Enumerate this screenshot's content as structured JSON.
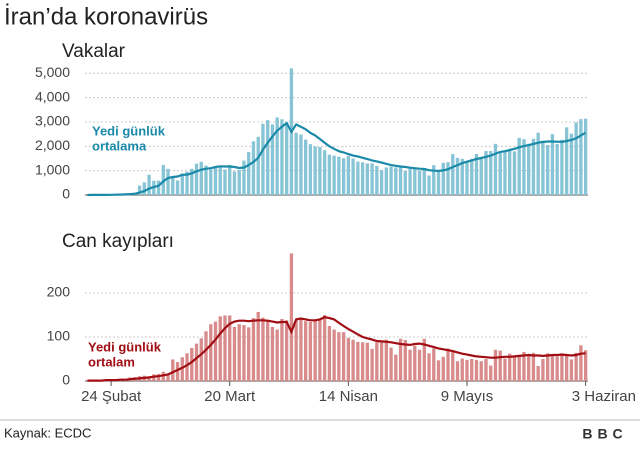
{
  "title": "İran’da koronavirüs",
  "source": "Kaynak: ECDC",
  "logo": "BBC",
  "chart_data": [
    {
      "type": "bar",
      "title": "Vakalar",
      "annotation": [
        "Yedi günlük",
        "ortalama"
      ],
      "categories": [
        null,
        null,
        null,
        null,
        null,
        "24 Şubat",
        null,
        null,
        null,
        null,
        null,
        null,
        null,
        null,
        null,
        null,
        null,
        null,
        null,
        null,
        null,
        null,
        null,
        null,
        null,
        null,
        null,
        null,
        null,
        null,
        "20 Mart",
        null,
        null,
        null,
        null,
        null,
        null,
        null,
        null,
        null,
        null,
        null,
        null,
        null,
        null,
        null,
        null,
        null,
        null,
        null,
        null,
        null,
        null,
        null,
        null,
        "14 Nisan",
        null,
        null,
        null,
        null,
        null,
        null,
        null,
        null,
        null,
        null,
        null,
        null,
        null,
        null,
        null,
        null,
        null,
        null,
        null,
        null,
        null,
        null,
        null,
        null,
        "9 Mayıs",
        null,
        null,
        null,
        null,
        null,
        null,
        null,
        null,
        null,
        null,
        null,
        null,
        null,
        null,
        null,
        null,
        null,
        null,
        null,
        null,
        null,
        null,
        null,
        null,
        "3 Haziran"
      ],
      "series": [
        {
          "type": "bar",
          "color": "#86c4d6",
          "values": [
            2,
            3,
            3,
            5,
            10,
            15,
            18,
            25,
            45,
            60,
            100,
            385,
            520,
            835,
            586,
            591,
            1234,
            1076,
            743,
            595,
            881,
            958,
            1075,
            1289,
            1365,
            1209,
            1053,
            1178,
            1192,
            1046,
            1237,
            966,
            1028,
            1411,
            1762,
            2206,
            2389,
            2926,
            3076,
            2901,
            3186,
            3110,
            2987,
            5200,
            2560,
            2483,
            2274,
            2089,
            1997,
            1972,
            1837,
            1657,
            1617,
            1574,
            1512,
            1606,
            1499,
            1374,
            1343,
            1294,
            1297,
            1194,
            1030,
            1133,
            1168,
            1134,
            1153,
            991,
            1112,
            1073,
            1006,
            1100,
            802,
            1223,
            976,
            1323,
            1349,
            1680,
            1529,
            1485,
            1383,
            1481,
            1683,
            1481,
            1808,
            1808,
            2102,
            1757,
            1806,
            1841,
            1792,
            2346,
            2294,
            2102,
            2311,
            2560,
            2180,
            2050,
            2500,
            2100,
            2270,
            2780,
            2516,
            2979,
            3117,
            3134
          ]
        },
        {
          "type": "line",
          "color": "#1a8aa8",
          "values": [
            2,
            3,
            3,
            4,
            6,
            9,
            12,
            17,
            25,
            35,
            50,
            100,
            160,
            260,
            330,
            380,
            560,
            700,
            740,
            760,
            830,
            840,
            890,
            970,
            1040,
            1080,
            1100,
            1150,
            1180,
            1170,
            1170,
            1150,
            1110,
            1130,
            1230,
            1360,
            1530,
            1860,
            2150,
            2400,
            2640,
            2800,
            2950,
            2600,
            2900,
            2800,
            2700,
            2550,
            2450,
            2300,
            2150,
            2000,
            1900,
            1800,
            1750,
            1680,
            1620,
            1580,
            1530,
            1480,
            1420,
            1380,
            1330,
            1280,
            1230,
            1200,
            1170,
            1150,
            1120,
            1100,
            1080,
            1070,
            1020,
            1000,
            990,
            1010,
            1060,
            1150,
            1230,
            1310,
            1370,
            1420,
            1480,
            1520,
            1570,
            1620,
            1700,
            1770,
            1800,
            1850,
            1900,
            1960,
            2010,
            2050,
            2100,
            2150,
            2180,
            2200,
            2200,
            2190,
            2180,
            2220,
            2260,
            2330,
            2450,
            2560
          ]
        }
      ],
      "ylim": [
        0,
        5300
      ],
      "yticks": [
        0,
        {
          "value": 1000,
          "label": "1,000"
        },
        {
          "value": 2000,
          "label": "2,000"
        },
        {
          "value": 3000,
          "label": "3,000"
        },
        {
          "value": 4000,
          "label": "4,000"
        },
        {
          "value": 5000,
          "label": "5,000"
        }
      ],
      "grid": true
    },
    {
      "type": "bar",
      "title": "Can kayıpları",
      "annotation": [
        "Yedi günlük",
        "ortalam"
      ],
      "categories": [
        null,
        null,
        null,
        null,
        null,
        "24 Şubat",
        null,
        null,
        null,
        null,
        null,
        null,
        null,
        null,
        null,
        null,
        null,
        null,
        null,
        null,
        null,
        null,
        null,
        null,
        null,
        null,
        null,
        null,
        null,
        null,
        "20 Mart",
        null,
        null,
        null,
        null,
        null,
        null,
        null,
        null,
        null,
        null,
        null,
        null,
        null,
        null,
        null,
        null,
        null,
        null,
        null,
        null,
        null,
        null,
        null,
        null,
        "14 Nisan",
        null,
        null,
        null,
        null,
        null,
        null,
        null,
        null,
        null,
        null,
        null,
        null,
        null,
        null,
        null,
        null,
        null,
        null,
        null,
        null,
        null,
        null,
        null,
        null,
        "9 Mayıs",
        null,
        null,
        null,
        null,
        null,
        null,
        null,
        null,
        null,
        null,
        null,
        null,
        null,
        null,
        null,
        null,
        null,
        null,
        null,
        null,
        null,
        null,
        null,
        null,
        "3 Haziran"
      ],
      "series": [
        {
          "type": "bar",
          "color": "#d98b8c",
          "values": [
            2,
            0,
            1,
            1,
            4,
            3,
            4,
            3,
            3,
            8,
            9,
            11,
            12,
            11,
            15,
            16,
            21,
            15,
            49,
            43,
            54,
            63,
            75,
            85,
            97,
            113,
            129,
            135,
            147,
            149,
            149,
            123,
            129,
            127,
            122,
            143,
            157,
            144,
            139,
            123,
            117,
            141,
            138,
            290,
            138,
            140,
            136,
            134,
            138,
            142,
            150,
            125,
            117,
            111,
            111,
            98,
            94,
            89,
            88,
            87,
            73,
            88,
            90,
            94,
            76,
            60,
            96,
            93,
            71,
            80,
            71,
            96,
            63,
            74,
            47,
            55,
            74,
            68,
            45,
            51,
            48,
            50,
            48,
            45,
            50,
            35,
            71,
            69,
            51,
            62,
            55,
            58,
            66,
            58,
            64,
            34,
            50,
            63,
            57,
            56,
            63,
            58,
            49,
            64,
            81,
            70
          ]
        },
        {
          "type": "line",
          "color": "#a00e14",
          "values": [
            1,
            1,
            1,
            1,
            2,
            2,
            2,
            3,
            3,
            4,
            5,
            6,
            7,
            8,
            10,
            11,
            13,
            15,
            20,
            25,
            30,
            36,
            43,
            52,
            61,
            71,
            82,
            94,
            108,
            120,
            130,
            135,
            137,
            137,
            136,
            137,
            138,
            138,
            137,
            135,
            133,
            134,
            134,
            112,
            140,
            142,
            140,
            138,
            138,
            140,
            145,
            143,
            140,
            132,
            125,
            118,
            112,
            106,
            100,
            97,
            94,
            91,
            90,
            89,
            88,
            86,
            84,
            83,
            82,
            84,
            85,
            83,
            80,
            77,
            74,
            72,
            70,
            68,
            65,
            62,
            60,
            58,
            56,
            55,
            54,
            53,
            53,
            54,
            55,
            55,
            56,
            57,
            58,
            59,
            58,
            58,
            57,
            58,
            59,
            59,
            60,
            59,
            58,
            59,
            62,
            63
          ]
        }
      ],
      "ylim": [
        0,
        300
      ],
      "yticks": [
        0,
        100,
        200
      ],
      "grid": true
    }
  ]
}
